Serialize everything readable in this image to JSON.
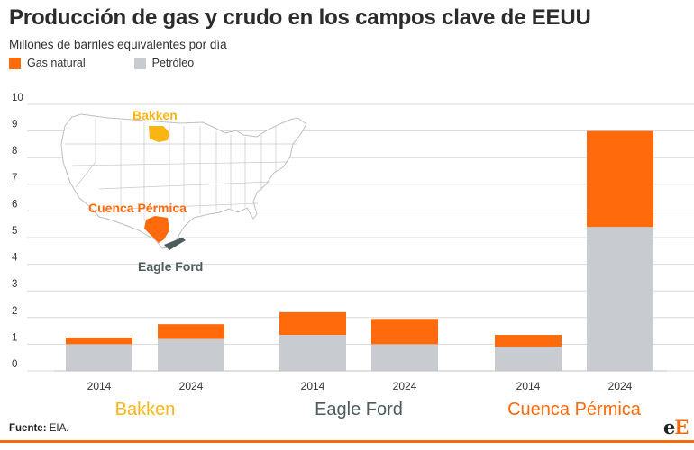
{
  "header": {
    "title": "Producción de gas y crudo en los campos clave de EEUU",
    "subtitle": "Millones de barriles equivalentes por día"
  },
  "colors": {
    "gas": "#ff6a0d",
    "oil": "#c8cbd0",
    "bakken": "#f9b514",
    "eagle_ford": "#4c5b5c",
    "permian": "#ff6a0d",
    "grid": "#d9d9d9"
  },
  "chart_data": {
    "type": "bar",
    "stacked": true,
    "groups": [
      "Bakken",
      "Eagle Ford",
      "Cuenca Pérmica"
    ],
    "categories": [
      "2014",
      "2024",
      "2014",
      "2024",
      "2014",
      "2024"
    ],
    "series": [
      {
        "name": "Petróleo",
        "values": [
          1.0,
          1.2,
          1.35,
          1.0,
          0.9,
          5.4
        ]
      },
      {
        "name": "Gas natural",
        "values": [
          0.25,
          0.55,
          0.85,
          0.95,
          0.45,
          3.6
        ]
      }
    ],
    "yticks": [
      0,
      1,
      2,
      3,
      4,
      5,
      6,
      7,
      8,
      9,
      10
    ],
    "ylim": [
      0,
      10
    ],
    "grid": true,
    "legend": "top-left"
  },
  "map": {
    "labels": {
      "bakken": "Bakken",
      "permian": "Cuenca Pérmica",
      "eagle_ford": "Eagle Ford"
    }
  },
  "footer": {
    "source_label": "Fuente:",
    "source_text": " EIA.",
    "logo_a": "e",
    "logo_b": "E"
  }
}
